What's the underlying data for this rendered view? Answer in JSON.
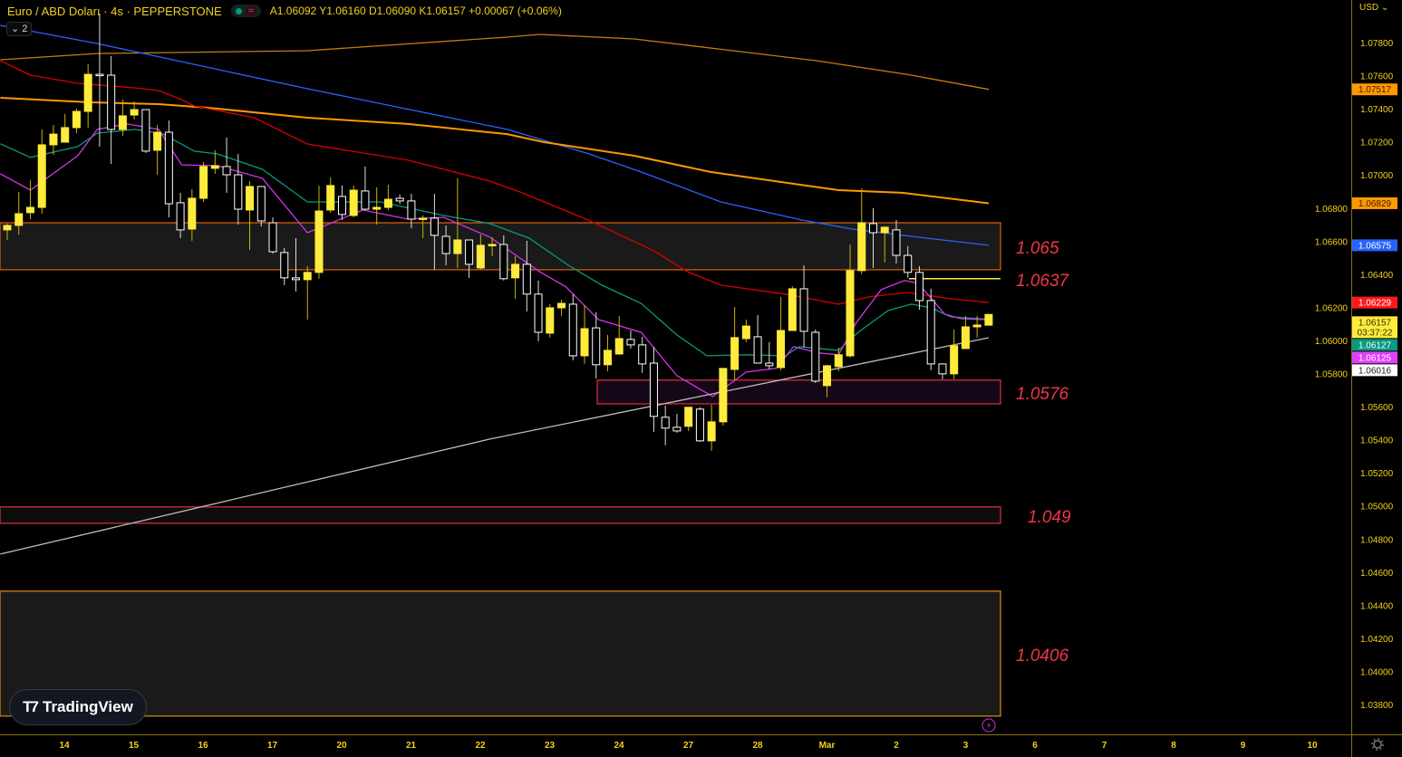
{
  "header": {
    "symbol_title": "Euro / ABD Doları · 4s · PEPPERSTONE",
    "ohlc_text": "A1.06092 Y1.06160 D1.06090 K1.06157 +0.00067 (+0.06%)",
    "indicator_toggle": "2",
    "currency": "USD"
  },
  "branding": {
    "logo_text": "TradingView"
  },
  "colors": {
    "background": "#000000",
    "axis_text": "#f2d21b",
    "candle_up": "#ffeb3b",
    "candle_down": "#ffffff",
    "zone_label": "#f23645"
  },
  "chart_data": {
    "type": "candlestick",
    "title": "Euro / ABD Doları · 4s · PEPPERSTONE",
    "timeframe": "4s",
    "y_ticks": [
      "1.07800",
      "1.07600",
      "1.07400",
      "1.07200",
      "1.07000",
      "1.06800",
      "1.06600",
      "1.06400",
      "1.06200",
      "1.06000",
      "1.05800",
      "1.05600",
      "1.05400",
      "1.05200",
      "1.05000",
      "1.04800",
      "1.04600",
      "1.04400",
      "1.04200",
      "1.04000",
      "1.03800"
    ],
    "ylim": [
      1.0372,
      1.0804
    ],
    "x_ticks": [
      "14",
      "15",
      "16",
      "17",
      "20",
      "21",
      "22",
      "23",
      "24",
      "27",
      "28",
      "Mar",
      "2",
      "3",
      "6",
      "7",
      "8",
      "9",
      "10"
    ],
    "candles_ohlc": [
      [
        1.06668,
        1.06706,
        1.06607,
        1.06695
      ],
      [
        1.06695,
        1.06897,
        1.0664,
        1.06766
      ],
      [
        1.06772,
        1.06968,
        1.06733,
        1.06804
      ],
      [
        1.06804,
        1.07275,
        1.06766,
        1.07182
      ],
      [
        1.07182,
        1.07302,
        1.07122,
        1.07247
      ],
      [
        1.07198,
        1.07368,
        1.07198,
        1.07286
      ],
      [
        1.07286,
        1.07401,
        1.07253,
        1.07384
      ],
      [
        1.07384,
        1.07669,
        1.07286,
        1.07608
      ],
      [
        1.07608,
        1.07975,
        1.07171,
        1.07603
      ],
      [
        1.07603,
        1.07718,
        1.07067,
        1.07275
      ],
      [
        1.07275,
        1.07455,
        1.07237,
        1.07357
      ],
      [
        1.07362,
        1.07444,
        1.07335,
        1.07395
      ],
      [
        1.07395,
        1.07395,
        1.07133,
        1.07144
      ],
      [
        1.07149,
        1.07302,
        1.07001,
        1.07258
      ],
      [
        1.07258,
        1.07329,
        1.06744,
        1.06826
      ],
      [
        1.06832,
        1.06892,
        1.06618,
        1.06668
      ],
      [
        1.06673,
        1.06914,
        1.06602,
        1.06859
      ],
      [
        1.06859,
        1.07078,
        1.06837,
        1.07051
      ],
      [
        1.0704,
        1.07149,
        1.07007,
        1.07056
      ],
      [
        1.07051,
        1.07226,
        1.06892,
        1.07001
      ],
      [
        1.07001,
        1.07127,
        1.067,
        1.06793
      ],
      [
        1.06788,
        1.06963,
        1.06547,
        1.0693
      ],
      [
        1.0693,
        1.0693,
        1.06689,
        1.06722
      ],
      [
        1.06711,
        1.06744,
        1.06525,
        1.06536
      ],
      [
        1.06531,
        1.06558,
        1.06334,
        1.06378
      ],
      [
        1.06378,
        1.06618,
        1.06296,
        1.06367
      ],
      [
        1.06367,
        1.06449,
        1.06126,
        1.06411
      ],
      [
        1.06411,
        1.06936,
        1.06373,
        1.06782
      ],
      [
        1.06788,
        1.06985,
        1.06772,
        1.06936
      ],
      [
        1.0687,
        1.06936,
        1.06728,
        1.06761
      ],
      [
        1.06755,
        1.06936,
        1.06744,
        1.06908
      ],
      [
        1.06903,
        1.07051,
        1.06788,
        1.06793
      ],
      [
        1.06793,
        1.06925,
        1.067,
        1.06804
      ],
      [
        1.06804,
        1.06941,
        1.06788,
        1.06853
      ],
      [
        1.06859,
        1.06881,
        1.06826,
        1.06843
      ],
      [
        1.06843,
        1.06886,
        1.06678,
        1.06733
      ],
      [
        1.06733,
        1.06755,
        1.06618,
        1.06739
      ],
      [
        1.06739,
        1.06886,
        1.06427,
        1.06635
      ],
      [
        1.06629,
        1.06695,
        1.06454,
        1.06525
      ],
      [
        1.06525,
        1.0698,
        1.06438,
        1.06607
      ],
      [
        1.06607,
        1.06607,
        1.06378,
        1.0646
      ],
      [
        1.06438,
        1.0664,
        1.06427,
        1.06575
      ],
      [
        1.06575,
        1.06624,
        1.06509,
        1.0658
      ],
      [
        1.0658,
        1.06635,
        1.06362,
        1.06373
      ],
      [
        1.06378,
        1.06509,
        1.06252,
        1.0646
      ],
      [
        1.0646,
        1.06602,
        1.06175,
        1.0628
      ],
      [
        1.0628,
        1.06362,
        1.05995,
        1.06049
      ],
      [
        1.06044,
        1.06219,
        1.06017,
        1.06197
      ],
      [
        1.06197,
        1.06246,
        1.06148,
        1.06224
      ],
      [
        1.06219,
        1.0628,
        1.0588,
        1.05907
      ],
      [
        1.05907,
        1.06213,
        1.05858,
        1.06071
      ],
      [
        1.06076,
        1.0617,
        1.0577,
        1.05853
      ],
      [
        1.05853,
        1.06033,
        1.05814,
        1.0594
      ],
      [
        1.05918,
        1.06148,
        1.05913,
        1.06011
      ],
      [
        1.06006,
        1.0606,
        1.05951,
        1.05973
      ],
      [
        1.05973,
        1.06022,
        1.05803,
        1.05858
      ],
      [
        1.05863,
        1.05962,
        1.05448,
        1.05541
      ],
      [
        1.05536,
        1.05607,
        1.05366,
        1.0547
      ],
      [
        1.05475,
        1.05557,
        1.05442,
        1.05453
      ],
      [
        1.05481,
        1.05596,
        1.05453,
        1.05596
      ],
      [
        1.05585,
        1.05596,
        1.05388,
        1.05393
      ],
      [
        1.05393,
        1.05612,
        1.05333,
        1.05508
      ],
      [
        1.05508,
        1.05831,
        1.05486,
        1.05831
      ],
      [
        1.05825,
        1.06202,
        1.0576,
        1.06017
      ],
      [
        1.06011,
        1.06126,
        1.0599,
        1.06087
      ],
      [
        1.06022,
        1.06153,
        1.05863,
        1.05863
      ],
      [
        1.05863,
        1.0599,
        1.05825,
        1.05847
      ],
      [
        1.05836,
        1.06263,
        1.0582,
        1.0606
      ],
      [
        1.0606,
        1.06327,
        1.0606,
        1.06312
      ],
      [
        1.06312,
        1.06454,
        1.05957,
        1.06055
      ],
      [
        1.06049,
        1.06066,
        1.05743,
        1.05754
      ],
      [
        1.05727,
        1.05853,
        1.05656,
        1.05847
      ],
      [
        1.05842,
        1.05957,
        1.05814,
        1.05913
      ],
      [
        1.05907,
        1.0658,
        1.05896,
        1.06422
      ],
      [
        1.06422,
        1.06919,
        1.064,
        1.06711
      ],
      [
        1.06706,
        1.06799,
        1.06438,
        1.06651
      ],
      [
        1.06651,
        1.06689,
        1.06471,
        1.06684
      ],
      [
        1.06668,
        1.06728,
        1.06465,
        1.06514
      ],
      [
        1.06514,
        1.06569,
        1.06378,
        1.06411
      ],
      [
        1.06411,
        1.06449,
        1.06186,
        1.06241
      ],
      [
        1.06241,
        1.06312,
        1.0582,
        1.05858
      ],
      [
        1.05858,
        1.05858,
        1.05765,
        1.05798
      ],
      [
        1.05798,
        1.06066,
        1.05765,
        1.05968
      ],
      [
        1.05951,
        1.06148,
        1.05951,
        1.06082
      ],
      [
        1.06082,
        1.06148,
        1.06017,
        1.06093
      ],
      [
        1.06092,
        1.0616,
        1.0609,
        1.06157
      ]
    ],
    "moving_averages": [
      {
        "color": "#c87a12",
        "last": 1.07517,
        "points": [
          [
            -0.6,
            1.07696
          ],
          [
            7.8,
            1.07734
          ],
          [
            26,
            1.07751
          ],
          [
            43.3,
            1.07833
          ],
          [
            46.1,
            1.07849
          ],
          [
            54.3,
            1.07822
          ],
          [
            62.2,
            1.07756
          ],
          [
            70,
            1.07691
          ],
          [
            77.9,
            1.07608
          ],
          [
            85,
            1.07517
          ]
        ]
      },
      {
        "color": "#2962ff",
        "last": 1.06575,
        "points": [
          [
            -0.6,
            1.07904
          ],
          [
            7.8,
            1.07794
          ],
          [
            26,
            1.07521
          ],
          [
            43.3,
            1.07275
          ],
          [
            46.5,
            1.07209
          ],
          [
            50.4,
            1.07127
          ],
          [
            54.9,
            1.07018
          ],
          [
            61.8,
            1.06837
          ],
          [
            68.8,
            1.06728
          ],
          [
            73.2,
            1.06673
          ],
          [
            78.9,
            1.06624
          ],
          [
            85,
            1.06575
          ]
        ]
      },
      {
        "color": "#ff9800",
        "last": 1.06829,
        "points": [
          [
            -0.6,
            1.07466
          ],
          [
            7.2,
            1.07439
          ],
          [
            13.1,
            1.07428
          ],
          [
            17.4,
            1.07406
          ],
          [
            26,
            1.07346
          ],
          [
            34.7,
            1.07308
          ],
          [
            43.3,
            1.07247
          ],
          [
            46.5,
            1.07198
          ],
          [
            54.3,
            1.07116
          ],
          [
            60.9,
            1.07018
          ],
          [
            72,
            1.06908
          ],
          [
            77.5,
            1.06892
          ],
          [
            85,
            1.06829
          ]
        ]
      },
      {
        "color": "#d80000",
        "last": 1.06229,
        "points": [
          [
            -0.6,
            1.0769
          ],
          [
            2,
            1.07603
          ],
          [
            6.1,
            1.07554
          ],
          [
            11.1,
            1.07526
          ],
          [
            13.1,
            1.0751
          ],
          [
            15.1,
            1.07455
          ],
          [
            16.2,
            1.07417
          ],
          [
            21.4,
            1.07346
          ],
          [
            26,
            1.07187
          ],
          [
            34.7,
            1.07089
          ],
          [
            41.8,
            1.06963
          ],
          [
            44.6,
            1.06892
          ],
          [
            50.3,
            1.06728
          ],
          [
            56,
            1.06542
          ],
          [
            58.9,
            1.06416
          ],
          [
            61.8,
            1.06334
          ],
          [
            67.4,
            1.0628
          ],
          [
            72,
            1.06219
          ],
          [
            74.6,
            1.06263
          ],
          [
            78,
            1.0629
          ],
          [
            81.7,
            1.06252
          ],
          [
            85,
            1.06229
          ]
        ]
      },
      {
        "color": "#089981",
        "last": 1.06127,
        "points": [
          [
            -0.6,
            1.07188
          ],
          [
            2,
            1.07106
          ],
          [
            6.1,
            1.07171
          ],
          [
            7.8,
            1.07253
          ],
          [
            11.1,
            1.07275
          ],
          [
            13.5,
            1.07247
          ],
          [
            16.2,
            1.07144
          ],
          [
            18.2,
            1.07127
          ],
          [
            22.1,
            1.07034
          ],
          [
            26,
            1.06837
          ],
          [
            32.3,
            1.06837
          ],
          [
            37.8,
            1.06755
          ],
          [
            41.8,
            1.06706
          ],
          [
            45.2,
            1.06618
          ],
          [
            48.6,
            1.06454
          ],
          [
            51.5,
            1.06334
          ],
          [
            54.9,
            1.06224
          ],
          [
            58,
            1.06033
          ],
          [
            60.6,
            1.05907
          ],
          [
            64,
            1.05913
          ],
          [
            67.4,
            1.05907
          ],
          [
            68.6,
            1.05962
          ],
          [
            72,
            1.0594
          ],
          [
            73.7,
            1.06049
          ],
          [
            76.3,
            1.06181
          ],
          [
            78.3,
            1.06219
          ],
          [
            80,
            1.06197
          ],
          [
            81.7,
            1.06143
          ],
          [
            85,
            1.06127
          ]
        ]
      },
      {
        "color": "#d633e8",
        "last": 1.06125,
        "points": [
          [
            -0.6,
            1.07007
          ],
          [
            2,
            1.06908
          ],
          [
            6.1,
            1.07116
          ],
          [
            7.8,
            1.07275
          ],
          [
            10.4,
            1.07308
          ],
          [
            13.1,
            1.07275
          ],
          [
            15.1,
            1.07061
          ],
          [
            18.2,
            1.07056
          ],
          [
            22.1,
            1.0698
          ],
          [
            26,
            1.06651
          ],
          [
            30.8,
            1.06788
          ],
          [
            34.7,
            1.06733
          ],
          [
            37.8,
            1.06744
          ],
          [
            41.8,
            1.06624
          ],
          [
            46.1,
            1.06416
          ],
          [
            48.4,
            1.06323
          ],
          [
            51.2,
            1.06126
          ],
          [
            54.9,
            1.06049
          ],
          [
            58,
            1.05787
          ],
          [
            61.1,
            1.05661
          ],
          [
            64,
            1.05809
          ],
          [
            66.6,
            1.05831
          ],
          [
            68.1,
            1.05962
          ],
          [
            70.3,
            1.05924
          ],
          [
            72,
            1.05913
          ],
          [
            73.5,
            1.06104
          ],
          [
            75.7,
            1.06307
          ],
          [
            77.7,
            1.06362
          ],
          [
            78.9,
            1.06345
          ],
          [
            81.2,
            1.06159
          ],
          [
            82.6,
            1.06131
          ],
          [
            85,
            1.06125
          ]
        ]
      },
      {
        "color": "#bdbdbd",
        "last": 1.06016,
        "points": [
          [
            -0.6,
            1.04709
          ],
          [
            41.8,
            1.05404
          ],
          [
            85,
            1.06016
          ]
        ]
      }
    ],
    "zones": [
      {
        "label": "1.065",
        "top": 1.06711,
        "bottom": 1.06427,
        "from_bar": -1,
        "border": "#e0620d",
        "fill": "#1a1a1a"
      },
      {
        "label": "1.0576",
        "top": 1.0576,
        "bottom": 1.05617,
        "from_bar": 51.1,
        "border": "#e0303f",
        "fill": "#140818"
      },
      {
        "label": "1.049",
        "top": 1.04994,
        "bottom": 1.04895,
        "from_bar": -1,
        "border": "#e0303f",
        "fill": "#0d0d0d"
      },
      {
        "label": "1.0406",
        "top": 1.04485,
        "bottom": 1.0373,
        "from_bar": -1,
        "border": "#e08a0d",
        "fill": "#1a1a1a"
      }
    ],
    "horizontal_lines": [
      {
        "label": "1.0637",
        "price": 1.06373,
        "from_bar": 78.1,
        "color": "#ffeb3b"
      }
    ],
    "price_tags": [
      {
        "value": "1.07517",
        "price": 1.07517,
        "bg": "#ff9800",
        "fg": "#3a2200"
      },
      {
        "value": "1.06829",
        "price": 1.06829,
        "bg": "#ff9800",
        "fg": "#3a2200"
      },
      {
        "value": "1.06575",
        "price": 1.06575,
        "bg": "#2962ff",
        "fg": "#ffffff"
      },
      {
        "value": "1.06229",
        "price": 1.06229,
        "bg": "#ff1a1a",
        "fg": "#ffffff"
      },
      {
        "value": "1.06157",
        "sub": "03:37:22",
        "price": 1.0611,
        "bg": "#ffeb3b",
        "fg": "#333300"
      },
      {
        "value": "1.06127",
        "price": 1.06039,
        "bg": "#089981",
        "fg": "#ffffff"
      },
      {
        "value": "1.06125",
        "price": 1.05965,
        "bg": "#e040fb",
        "fg": "#ffffff"
      },
      {
        "value": "1.06016",
        "price": 1.05891,
        "bg": "#ffffff",
        "fg": "#222222"
      }
    ]
  }
}
